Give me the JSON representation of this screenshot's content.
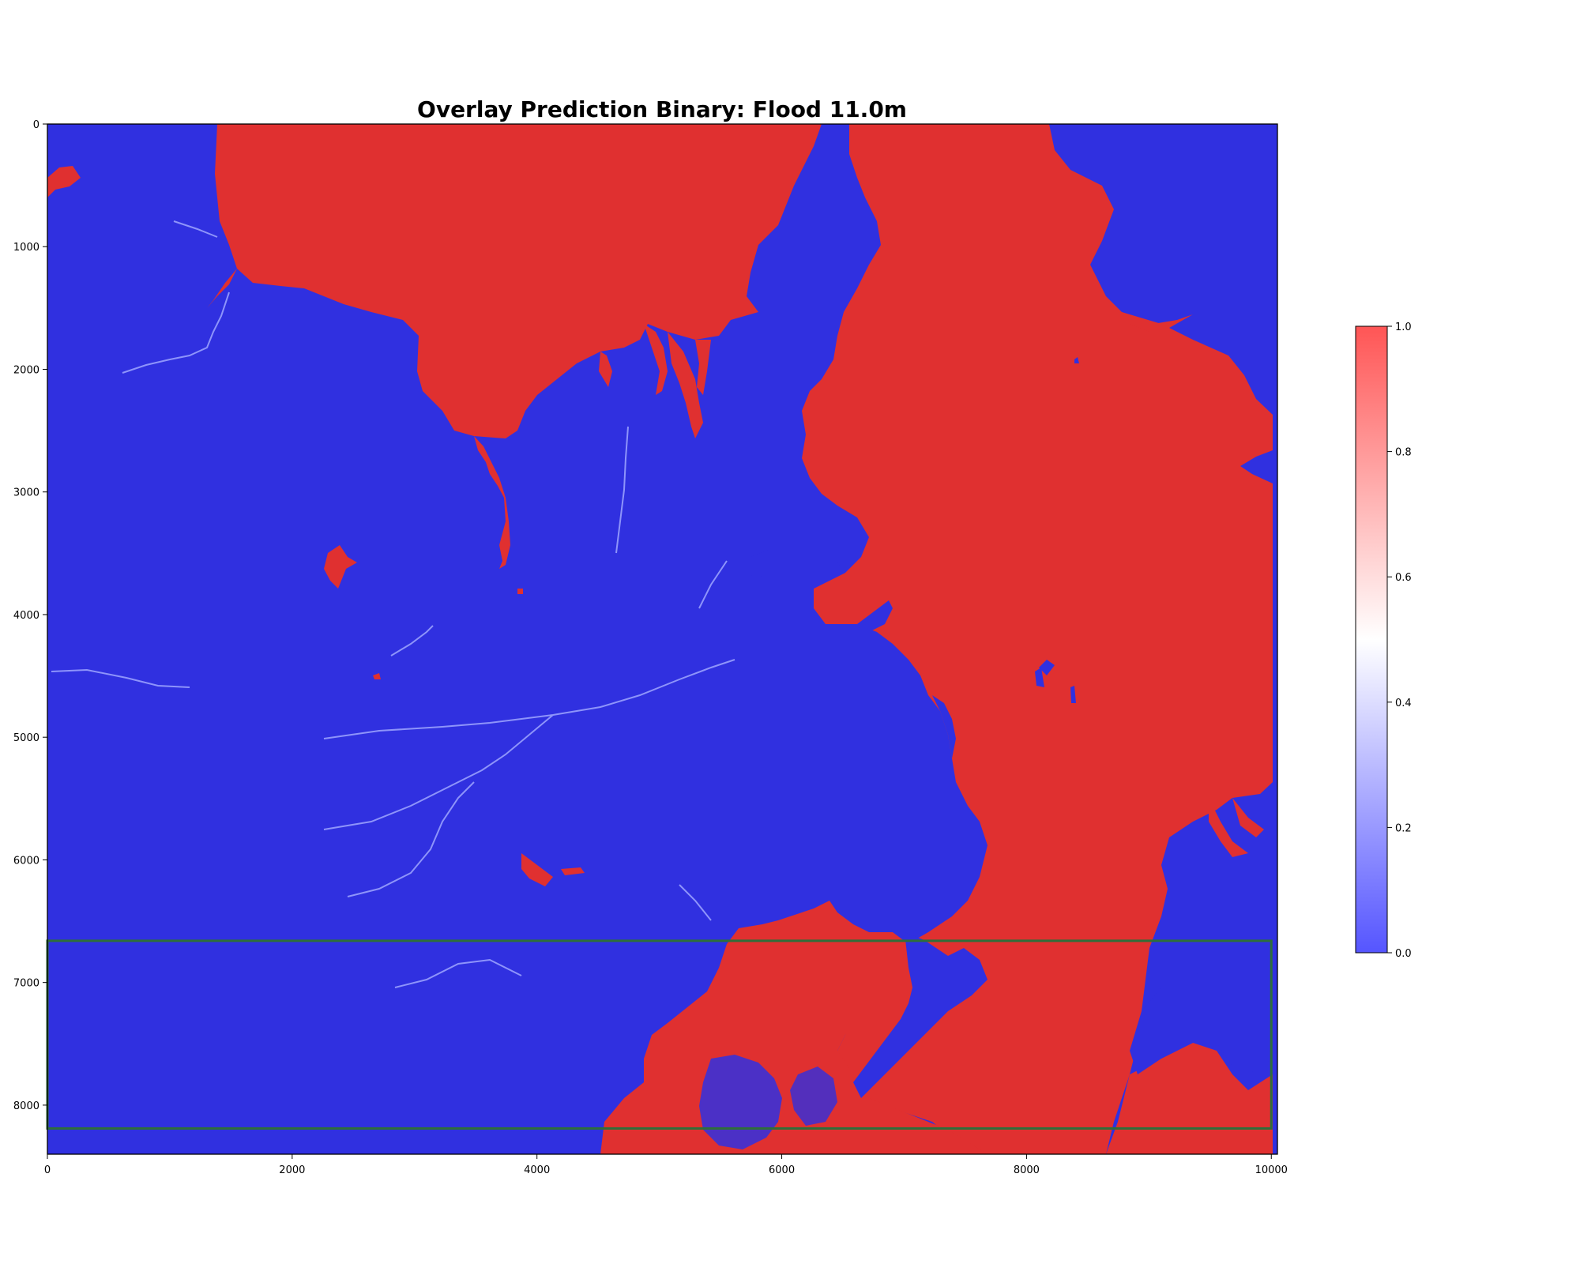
{
  "chart_data": {
    "type": "heatmap",
    "title": "Overlay Prediction Binary: Flood 11.0m",
    "xlabel": "",
    "ylabel": "",
    "xlim": [
      0,
      10050
    ],
    "ylim": [
      8400,
      0
    ],
    "x_ticks": [
      "0",
      "2000",
      "4000",
      "6000",
      "8000",
      "10000"
    ],
    "y_ticks": [
      "0",
      "1000",
      "2000",
      "3000",
      "4000",
      "5000",
      "6000",
      "7000",
      "8000"
    ],
    "colorbar": {
      "min": 0.0,
      "max": 1.0,
      "ticks": [
        "0.0",
        "0.2",
        "0.4",
        "0.6",
        "0.8",
        "1.0"
      ],
      "colors": {
        "low": "#5555ff",
        "mid": "#ffffff",
        "high": "#ff5555"
      }
    },
    "colors": {
      "non_flood": "#3030e0",
      "flood": "#e03030",
      "box": "#2e6e3a"
    },
    "annotations": [
      {
        "type": "rectangle",
        "x0": 0,
        "x1": 10000,
        "y0": 6660,
        "y1": 8190
      }
    ]
  }
}
